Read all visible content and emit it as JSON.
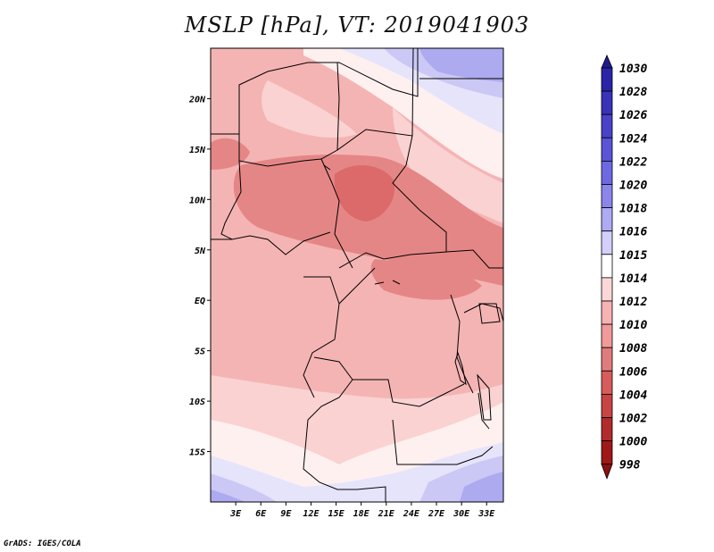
{
  "title": "MSLP [hPa], VT: 2019041903",
  "credit": "GrADS: IGES/COLA",
  "axes": {
    "lat_labels": [
      "20N",
      "15N",
      "10N",
      "5N",
      "EQ",
      "5S",
      "10S",
      "15S"
    ],
    "lat_values": [
      20,
      15,
      10,
      5,
      0,
      -5,
      -10,
      -15
    ],
    "lon_labels": [
      "3E",
      "6E",
      "9E",
      "12E",
      "15E",
      "18E",
      "21E",
      "24E",
      "27E",
      "30E",
      "33E"
    ],
    "lon_values": [
      3,
      6,
      9,
      12,
      15,
      18,
      21,
      24,
      27,
      30,
      33
    ],
    "lon_range": [
      0,
      35
    ],
    "lat_range": [
      -20,
      25
    ]
  },
  "colorbar": {
    "levels": [
      "1030",
      "1028",
      "1026",
      "1024",
      "1022",
      "1020",
      "1018",
      "1016",
      "1015",
      "1014",
      "1012",
      "1010",
      "1008",
      "1006",
      "1004",
      "1002",
      "1000",
      "998"
    ],
    "colors": [
      "#1f1a8f",
      "#2a25a8",
      "#3a32b8",
      "#4a42c8",
      "#5a54d6",
      "#6e69e2",
      "#8a86ec",
      "#aeabf4",
      "#d2d0fa",
      "#ffffff",
      "#fbd7d7",
      "#f7b2b2",
      "#f09a9a",
      "#e27b7b",
      "#d85c5c",
      "#c94444",
      "#b22a2a",
      "#a01818",
      "#8c1010"
    ]
  },
  "field_colors": {
    "p1004": "#dc6a6a",
    "p1006": "#e58686",
    "p1008": "#ef9e9e",
    "p1010": "#f5b4b4",
    "p1012": "#fad2d2",
    "p1014": "#fff0f0",
    "p1015": "#e6e4fb",
    "p1016": "#cbc8f5",
    "p1018": "#aeaaf0"
  }
}
